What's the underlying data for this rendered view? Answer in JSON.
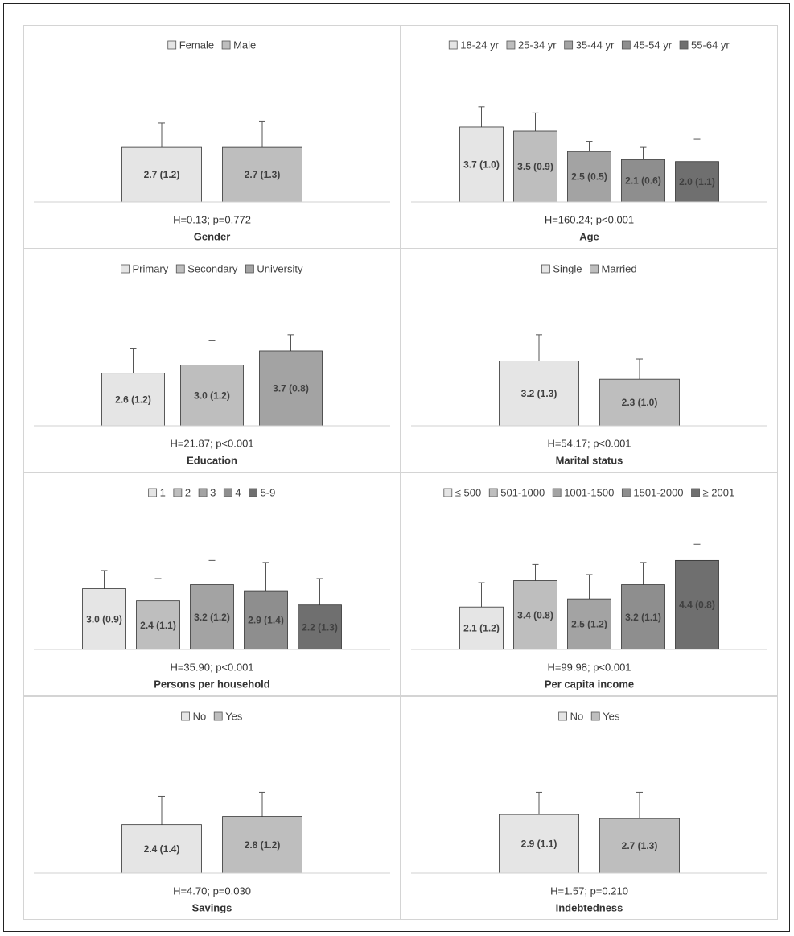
{
  "colors": [
    "#e5e5e5",
    "#bebebe",
    "#a3a3a3",
    "#8e8e8e",
    "#6f6f6f"
  ],
  "label_color": "#404040",
  "chart_data": [
    {
      "type": "bar",
      "categories": [
        "Female",
        "Male"
      ],
      "values": [
        2.7,
        2.7
      ],
      "errors": [
        1.2,
        1.3
      ],
      "data_labels": [
        "2.7 (1.2)",
        "2.7 (1.3)"
      ],
      "stat": "H=0.13; p=0.772",
      "xlabel": "Gender",
      "legend_position": "top",
      "ylim": [
        0,
        7.0
      ],
      "grid": false
    },
    {
      "type": "bar",
      "categories": [
        "18-24 yr",
        "25-34 yr",
        "35-44 yr",
        "45-54 yr",
        "55-64 yr"
      ],
      "values": [
        3.7,
        3.5,
        2.5,
        2.1,
        2.0
      ],
      "errors": [
        1.0,
        0.9,
        0.5,
        0.6,
        1.1
      ],
      "data_labels": [
        "3.7 (1.0)",
        "3.5 (0.9)",
        "2.5 (0.5)",
        "2.1 (0.6)",
        "2.0 (1.1)"
      ],
      "stat": "H=160.24; p<0.001",
      "xlabel": "Age",
      "legend_position": "top",
      "ylim": [
        0,
        7.0
      ],
      "grid": false
    },
    {
      "type": "bar",
      "categories": [
        "Primary",
        "Secondary",
        "University"
      ],
      "values": [
        2.6,
        3.0,
        3.7
      ],
      "errors": [
        1.2,
        1.2,
        0.8
      ],
      "data_labels": [
        "2.6 (1.2)",
        "3.0 (1.2)",
        "3.7 (0.8)"
      ],
      "stat": "H=21.87; p<0.001",
      "xlabel": "Education",
      "legend_position": "top",
      "ylim": [
        0,
        7.0
      ],
      "grid": false
    },
    {
      "type": "bar",
      "categories": [
        "Single",
        "Married"
      ],
      "values": [
        3.2,
        2.3
      ],
      "errors": [
        1.3,
        1.0
      ],
      "data_labels": [
        "3.2 (1.3)",
        "2.3 (1.0)"
      ],
      "stat": "H=54.17; p<0.001",
      "xlabel": "Marital status",
      "legend_position": "top",
      "ylim": [
        0,
        7.0
      ],
      "grid": false
    },
    {
      "type": "bar",
      "categories": [
        "1",
        "2",
        "3",
        "4",
        "5-9"
      ],
      "values": [
        3.0,
        2.4,
        3.2,
        2.9,
        2.2
      ],
      "errors": [
        0.9,
        1.1,
        1.2,
        1.4,
        1.3
      ],
      "data_labels": [
        "3.0 (0.9)",
        "2.4 (1.1)",
        "3.2 (1.2)",
        "2.9 (1.4)",
        "2.2 (1.3)"
      ],
      "stat": "H=35.90; p<0.001",
      "xlabel": "Persons per household",
      "legend_position": "top",
      "ylim": [
        0,
        7.0
      ],
      "grid": false
    },
    {
      "type": "bar",
      "categories": [
        "≤ 500",
        "501-1000",
        "1001-1500",
        "1501-2000",
        "≥ 2001"
      ],
      "values": [
        2.1,
        3.4,
        2.5,
        3.2,
        4.4
      ],
      "errors": [
        1.2,
        0.8,
        1.2,
        1.1,
        0.8
      ],
      "data_labels": [
        "2.1 (1.2)",
        "3.4 (0.8)",
        "2.5 (1.2)",
        "3.2 (1.1)",
        "4.4 (0.8)"
      ],
      "stat": "H=99.98; p<0.001",
      "xlabel": "Per capita income",
      "legend_position": "top",
      "ylim": [
        0,
        7.0
      ],
      "grid": false
    },
    {
      "type": "bar",
      "categories": [
        "No",
        "Yes"
      ],
      "values": [
        2.4,
        2.8
      ],
      "errors": [
        1.4,
        1.2
      ],
      "data_labels": [
        "2.4 (1.4)",
        "2.8 (1.2)"
      ],
      "stat": "H=4.70; p=0.030",
      "xlabel": "Savings",
      "legend_position": "top",
      "ylim": [
        0,
        7.0
      ],
      "grid": false
    },
    {
      "type": "bar",
      "categories": [
        "No",
        "Yes"
      ],
      "values": [
        2.9,
        2.7
      ],
      "errors": [
        1.1,
        1.3
      ],
      "data_labels": [
        "2.9 (1.1)",
        "2.7 (1.3)"
      ],
      "stat": "H=1.57; p=0.210",
      "xlabel": "Indebtedness",
      "legend_position": "top",
      "ylim": [
        0,
        7.0
      ],
      "grid": false
    }
  ]
}
